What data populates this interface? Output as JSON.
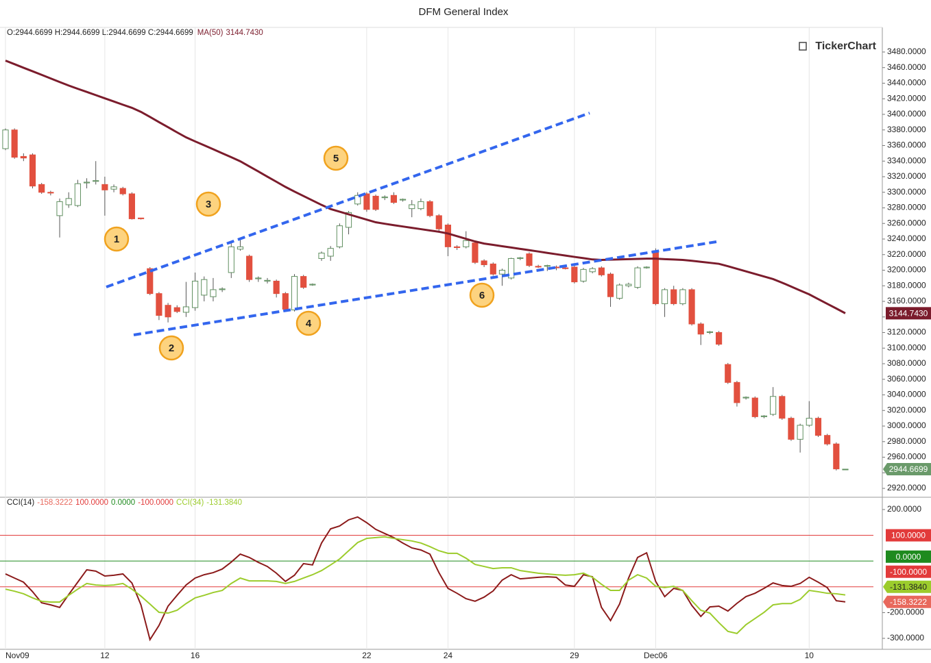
{
  "chart_data": [
    {
      "type": "candlestick",
      "title": "DFM General Index",
      "ohlc_label": "O:2944.6699 H:2944.6699 L:2944.6699 C:2944.6699",
      "watermark": "TickerChart",
      "close_label": "2944.6699",
      "up_color": "#ffffff",
      "up_edge": "#5f8f5f",
      "down_color": "#e2503f",
      "categories": [
        "Nov09",
        null,
        null,
        null,
        null,
        null,
        null,
        null,
        null,
        null,
        null,
        "12",
        null,
        null,
        null,
        null,
        null,
        null,
        null,
        null,
        null,
        "16",
        null,
        null,
        null,
        null,
        null,
        null,
        null,
        null,
        null,
        null,
        null,
        null,
        null,
        null,
        null,
        null,
        null,
        null,
        "22",
        null,
        null,
        null,
        null,
        null,
        null,
        null,
        null,
        "24",
        null,
        null,
        null,
        null,
        null,
        null,
        null,
        null,
        null,
        null,
        null,
        null,
        null,
        "29",
        null,
        null,
        null,
        null,
        null,
        null,
        null,
        null,
        "Dec06",
        null,
        null,
        null,
        null,
        null,
        null,
        null,
        null,
        null,
        null,
        null,
        null,
        null,
        null,
        null,
        null,
        "10",
        null,
        null,
        null,
        null
      ],
      "open": [
        3356,
        3380,
        3346,
        3348,
        3310,
        3300,
        3270,
        3284,
        3283,
        3312,
        3314,
        3310,
        3304,
        3305,
        3298,
        3267,
        3202,
        3170,
        3155,
        3152,
        3146,
        3152,
        3168,
        3166,
        3175,
        3197,
        3227,
        3218,
        3189,
        3186,
        3186,
        3170,
        3149,
        3192,
        3181,
        3215,
        3218,
        3230,
        3255,
        3285,
        3298,
        3295,
        3293,
        3296,
        3290,
        3279,
        3279,
        3288,
        3270,
        3258,
        3230,
        3230,
        3235,
        3212,
        3208,
        3195,
        3190,
        3215,
        3221,
        3205,
        3205,
        3204,
        3203,
        3204,
        3186,
        3198,
        3203,
        3195,
        3164,
        3180,
        3178,
        3203,
        3225,
        3157,
        3175,
        3157,
        3175,
        3131,
        3120,
        3120,
        3079,
        3056,
        3036,
        3036,
        3012,
        3015,
        3038,
        3010,
        2983,
        3001,
        3010,
        2988,
        2977,
        2944.6699
      ],
      "high": [
        3382,
        3382,
        3350,
        3350,
        3312,
        3302,
        3292,
        3300,
        3316,
        3318,
        3340,
        3320,
        3310,
        3307,
        3300,
        3267,
        3204,
        3172,
        3158,
        3155,
        3185,
        3197,
        3192,
        3190,
        3178,
        3237,
        3240,
        3220,
        3192,
        3190,
        3188,
        3172,
        3195,
        3194,
        3183,
        3224,
        3231,
        3260,
        3276,
        3300,
        3300,
        3297,
        3296,
        3300,
        3292,
        3290,
        3292,
        3290,
        3272,
        3260,
        3232,
        3250,
        3237,
        3214,
        3210,
        3202,
        3216,
        3217,
        3223,
        3207,
        3207,
        3206,
        3205,
        3206,
        3203,
        3204,
        3205,
        3197,
        3183,
        3184,
        3205,
        3205,
        3228,
        3177,
        3180,
        3177,
        3177,
        3133,
        3122,
        3122,
        3081,
        3058,
        3038,
        3038,
        3014,
        3050,
        3040,
        3012,
        3003,
        3032,
        3012,
        2990,
        2979,
        2944.6699
      ],
      "low": [
        3354,
        3343,
        3340,
        3305,
        3298,
        3296,
        3242,
        3280,
        3281,
        3305,
        3310,
        3270,
        3300,
        3296,
        3265,
        3265,
        3168,
        3136,
        3133,
        3145,
        3140,
        3148,
        3160,
        3160,
        3172,
        3190,
        3225,
        3185,
        3185,
        3183,
        3165,
        3148,
        3147,
        3176,
        3180,
        3212,
        3212,
        3228,
        3246,
        3283,
        3275,
        3276,
        3290,
        3285,
        3288,
        3268,
        3277,
        3268,
        3250,
        3218,
        3226,
        3228,
        3208,
        3204,
        3193,
        3180,
        3188,
        3213,
        3204,
        3203,
        3199,
        3200,
        3201,
        3183,
        3184,
        3196,
        3192,
        3153,
        3162,
        3178,
        3176,
        3202,
        3155,
        3140,
        3155,
        3155,
        3129,
        3104,
        3118,
        3103,
        3054,
        3025,
        3034,
        3010,
        3010,
        3013,
        3008,
        2981,
        2966,
        2999,
        2986,
        2975,
        2943,
        2944.6699
      ],
      "close": [
        3380,
        3345,
        3344,
        3308,
        3300,
        3299,
        3288,
        3292,
        3311,
        3313,
        3315,
        3303,
        3307,
        3298,
        3266,
        3266,
        3170,
        3142,
        3140,
        3147,
        3153,
        3186,
        3188,
        3175,
        3176,
        3230,
        3230,
        3188,
        3190,
        3187,
        3170,
        3150,
        3192,
        3178,
        3182,
        3222,
        3228,
        3257,
        3274,
        3296,
        3278,
        3278,
        3294,
        3287,
        3291,
        3284,
        3288,
        3270,
        3253,
        3230,
        3229,
        3238,
        3210,
        3207,
        3195,
        3200,
        3215,
        3216,
        3206,
        3204,
        3206,
        3203,
        3202,
        3185,
        3201,
        3202,
        3194,
        3166,
        3181,
        3182,
        3203,
        3204,
        3157,
        3175,
        3157,
        3175,
        3131,
        3118,
        3121,
        3105,
        3056,
        3030,
        3037,
        3012,
        3013,
        3038,
        3010,
        2983,
        3001,
        3010,
        2988,
        2977,
        2945,
        2944.6699
      ],
      "series": [
        {
          "name": "MA(50)",
          "color": "#7b1c2c",
          "last_label": "3144.7430",
          "values": [
            3469,
            3464.4,
            3459.8,
            3455.3,
            3450.7,
            3446.1,
            3441.5,
            3437,
            3432.8,
            3428.8,
            3424.7,
            3420.6,
            3416.5,
            3412.4,
            3408.4,
            3403.2,
            3396.7,
            3390,
            3383.5,
            3376.9,
            3370.5,
            3365.3,
            3360.3,
            3355.2,
            3350.1,
            3345,
            3339.8,
            3333.2,
            3326.7,
            3320,
            3313.5,
            3306.9,
            3300.9,
            3295.2,
            3289.5,
            3283.8,
            3278.5,
            3275.1,
            3271.7,
            3268.3,
            3264.9,
            3261.5,
            3259.6,
            3257.8,
            3256.1,
            3254.4,
            3252.7,
            3251,
            3249.3,
            3247.1,
            3243.7,
            3240.3,
            3236.9,
            3234.2,
            3232.5,
            3230.8,
            3229.1,
            3227.4,
            3225.7,
            3224,
            3222.2,
            3220.5,
            3218.8,
            3217.1,
            3215.5,
            3213.8,
            3213.2,
            3213.5,
            3213.8,
            3214.2,
            3214.5,
            3214.8,
            3214.8,
            3214.2,
            3213.7,
            3213.2,
            3212.1,
            3210.8,
            3209.5,
            3208.2,
            3205.1,
            3201.8,
            3198.5,
            3195.2,
            3191.9,
            3188.6,
            3184,
            3179,
            3174,
            3169,
            3162.9,
            3156.9,
            3150.9,
            3144.743
          ]
        }
      ],
      "ylim": [
        2909.5,
        3511.6
      ],
      "yticks": [
        {
          "value": 2920,
          "label": "2920.0000"
        },
        {
          "value": 2940,
          "label": "2940.0000"
        },
        {
          "value": 2960,
          "label": "2960.0000"
        },
        {
          "value": 2980,
          "label": "2980.0000"
        },
        {
          "value": 3000,
          "label": "3000.0000"
        },
        {
          "value": 3020,
          "label": "3020.0000"
        },
        {
          "value": 3040,
          "label": "3040.0000"
        },
        {
          "value": 3060,
          "label": "3060.0000"
        },
        {
          "value": 3080,
          "label": "3080.0000"
        },
        {
          "value": 3100,
          "label": "3100.0000"
        },
        {
          "value": 3120,
          "label": "3120.0000"
        },
        {
          "value": 3140,
          "label": "3140.0000"
        },
        {
          "value": 3160,
          "label": "3160.0000"
        },
        {
          "value": 3180,
          "label": "3180.0000"
        },
        {
          "value": 3200,
          "label": "3200.0000"
        },
        {
          "value": 3220,
          "label": "3220.0000"
        },
        {
          "value": 3240,
          "label": "3240.0000"
        },
        {
          "value": 3260,
          "label": "3260.0000"
        },
        {
          "value": 3280,
          "label": "3280.0000"
        },
        {
          "value": 3300,
          "label": "3300.0000"
        },
        {
          "value": 3320,
          "label": "3320.0000"
        },
        {
          "value": 3340,
          "label": "3340.0000"
        },
        {
          "value": 3360,
          "label": "3360.0000"
        },
        {
          "value": 3380,
          "label": "3380.0000"
        },
        {
          "value": 3400,
          "label": "3400.0000"
        },
        {
          "value": 3420,
          "label": "3420.0000"
        },
        {
          "value": 3440,
          "label": "3440.0000"
        },
        {
          "value": 3460,
          "label": "3460.0000"
        },
        {
          "value": 3480,
          "label": "3480.0000"
        }
      ],
      "annotations": [
        "1",
        "2",
        "3",
        "4",
        "5",
        "6"
      ]
    },
    {
      "type": "line",
      "series": [
        {
          "name": "CCI(14)",
          "color": "#8b1a1a",
          "badge_color": "#e8685c",
          "last_label": "-158.3222",
          "values": [
            -50,
            -66,
            -82,
            -119,
            -162,
            -170,
            -180,
            -130,
            -82,
            -34,
            -39,
            -58,
            -55,
            -50,
            -85,
            -170,
            -305,
            -250,
            -175,
            -133,
            -93,
            -66,
            -53,
            -45,
            -31,
            -4,
            27,
            14,
            -5,
            -21,
            -47,
            -79,
            -55,
            -10,
            -15,
            70,
            125,
            136,
            160,
            171,
            149,
            123,
            107,
            91,
            70,
            51,
            43,
            27,
            -45,
            -106,
            -125,
            -146,
            -156,
            -140,
            -116,
            -74,
            -53,
            -69,
            -66,
            -63,
            -61,
            -63,
            -93,
            -98,
            -53,
            -61,
            -180,
            -231,
            -167,
            -66,
            14,
            32,
            -79,
            -138,
            -106,
            -114,
            -172,
            -215,
            -178,
            -175,
            -194,
            -164,
            -138,
            -125,
            -106,
            -85,
            -95,
            -98,
            -87,
            -63,
            -82,
            -103,
            -154,
            -158.3222
          ]
        },
        {
          "name": "CCI(34)",
          "color": "#9ccc2c",
          "badge_color": "#9ccc2c",
          "last_label": "-131.3840",
          "values": [
            -109,
            -117,
            -127,
            -143,
            -156,
            -159,
            -159,
            -133,
            -109,
            -87,
            -93,
            -95,
            -93,
            -87,
            -109,
            -136,
            -167,
            -199,
            -202,
            -191,
            -165,
            -143,
            -133,
            -122,
            -114,
            -87,
            -66,
            -77,
            -77,
            -77,
            -79,
            -87,
            -79,
            -66,
            -53,
            -37,
            -15,
            8,
            40,
            72,
            88,
            91,
            94,
            88,
            83,
            78,
            70,
            56,
            40,
            30,
            30,
            11,
            -13,
            -21,
            -29,
            -26,
            -26,
            -37,
            -42,
            -47,
            -50,
            -53,
            -55,
            -53,
            -47,
            -63,
            -90,
            -114,
            -114,
            -74,
            -53,
            -66,
            -98,
            -103,
            -98,
            -114,
            -154,
            -191,
            -202,
            -239,
            -273,
            -281,
            -247,
            -223,
            -199,
            -170,
            -165,
            -165,
            -149,
            -114,
            -119,
            -125,
            -127,
            -131.384
          ]
        }
      ],
      "reference_lines": [
        {
          "value": 100,
          "label": "100.0000",
          "color": "#e23a3a"
        },
        {
          "value": 0,
          "label": "0.0000",
          "color": "#1e8a1e"
        },
        {
          "value": -100,
          "label": "-100.0000",
          "color": "#e23a3a"
        }
      ],
      "ylim": [
        -342.5,
        245
      ],
      "yticks": [
        {
          "value": 200,
          "label": "200.0000"
        },
        {
          "value": -200,
          "label": "-200.0000"
        },
        {
          "value": -300,
          "label": "-300.0000"
        }
      ]
    }
  ]
}
